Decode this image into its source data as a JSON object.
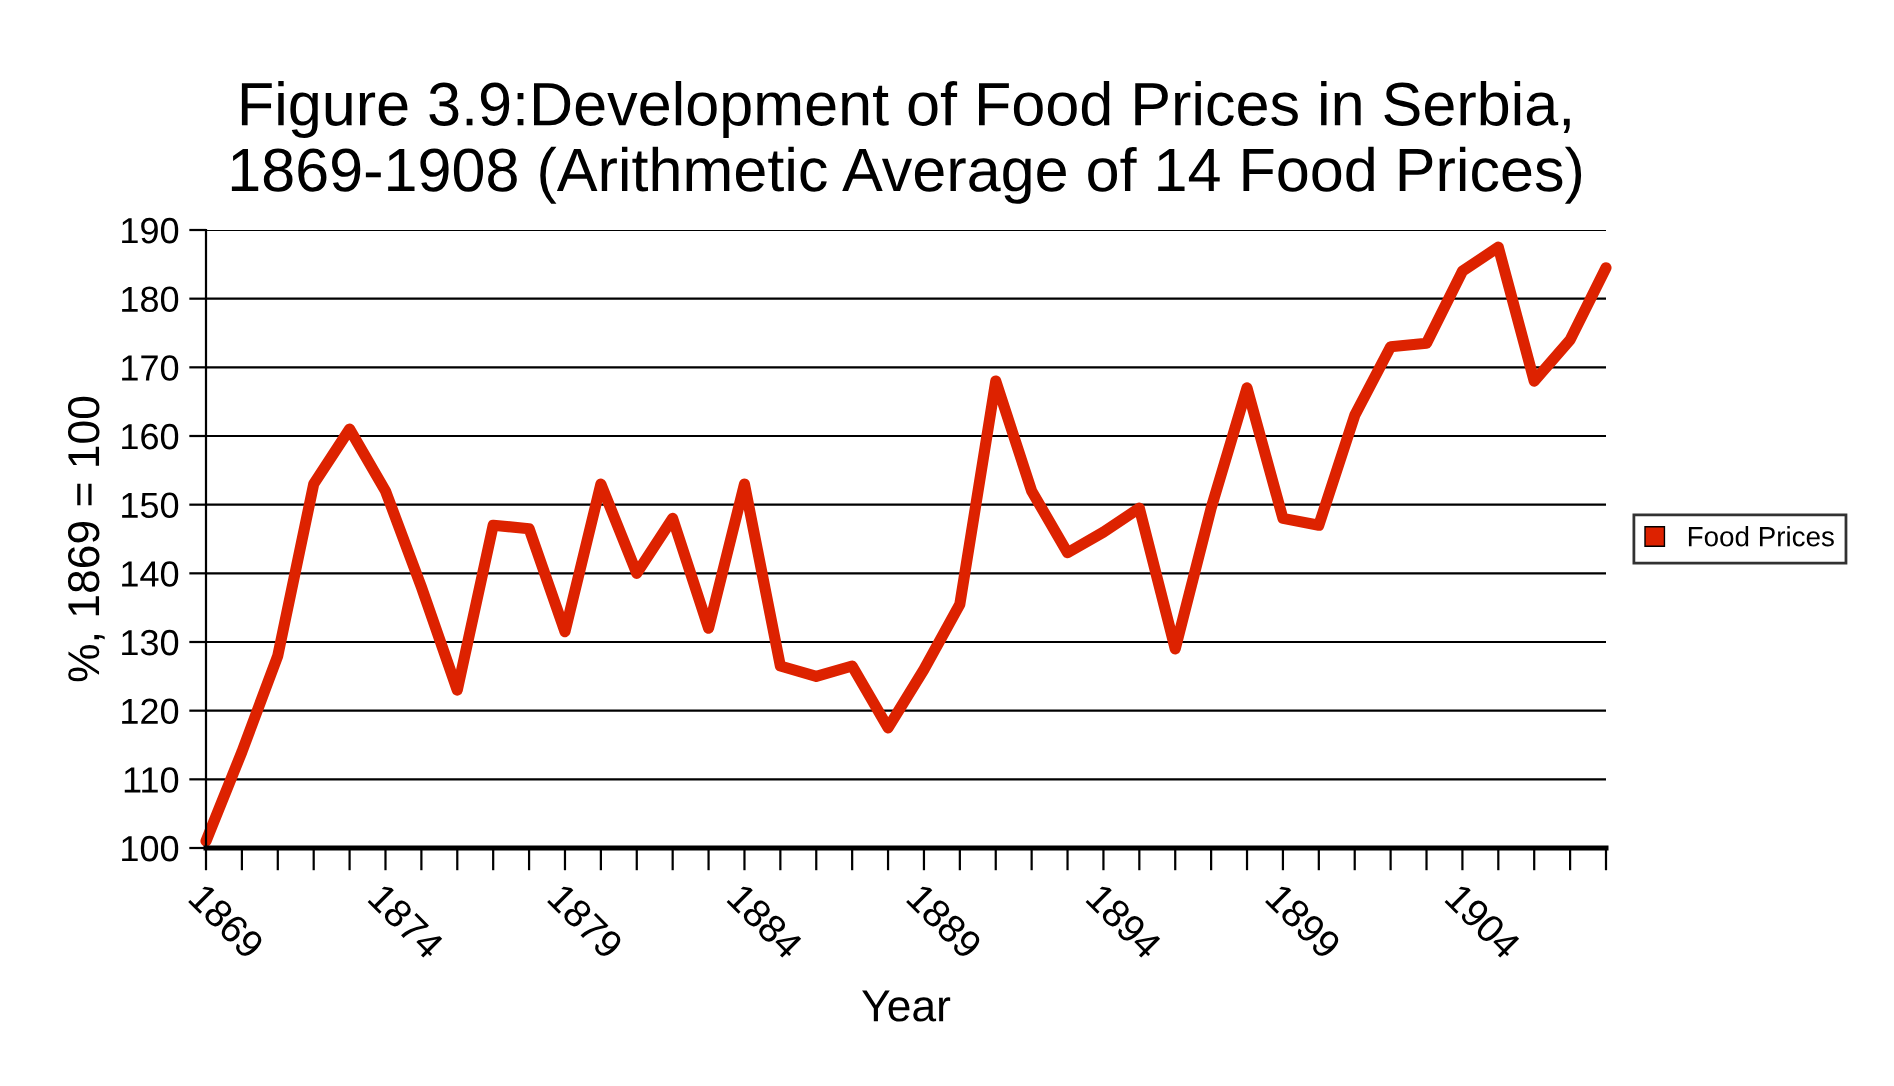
{
  "chart_data": {
    "type": "line",
    "title": "Figure 3.9:Development of Food Prices in Serbia,\n1869-1908 (Arithmetic Average of 14 Food Prices)",
    "xlabel": "Year",
    "ylabel": "%, 1869 = 100",
    "categories": [
      "1869",
      null,
      null,
      null,
      null,
      "1874",
      null,
      null,
      null,
      null,
      "1879",
      null,
      null,
      null,
      null,
      "1884",
      null,
      null,
      null,
      null,
      "1889",
      null,
      null,
      null,
      null,
      "1894",
      null,
      null,
      null,
      null,
      "1899",
      null,
      null,
      null,
      null,
      "1904",
      null,
      null,
      null,
      null
    ],
    "series": [
      {
        "name": "Food Prices",
        "color": "#dd2200",
        "values": [
          101,
          114,
          128,
          153,
          161,
          152,
          138,
          123,
          147,
          146.5,
          131.5,
          153,
          140,
          148,
          132,
          153,
          126.5,
          125,
          126.5,
          117.5,
          126,
          135.5,
          168,
          152,
          143,
          146,
          149.5,
          129,
          149.5,
          167,
          148,
          147,
          163,
          173,
          173.5,
          184,
          187.5,
          168,
          174,
          184.5
        ]
      }
    ],
    "ylim": [
      100,
      190
    ],
    "yticks": [
      100,
      110,
      120,
      130,
      140,
      150,
      160,
      170,
      180,
      190
    ],
    "grid": "y",
    "legend": "right",
    "line_style": "solid"
  }
}
